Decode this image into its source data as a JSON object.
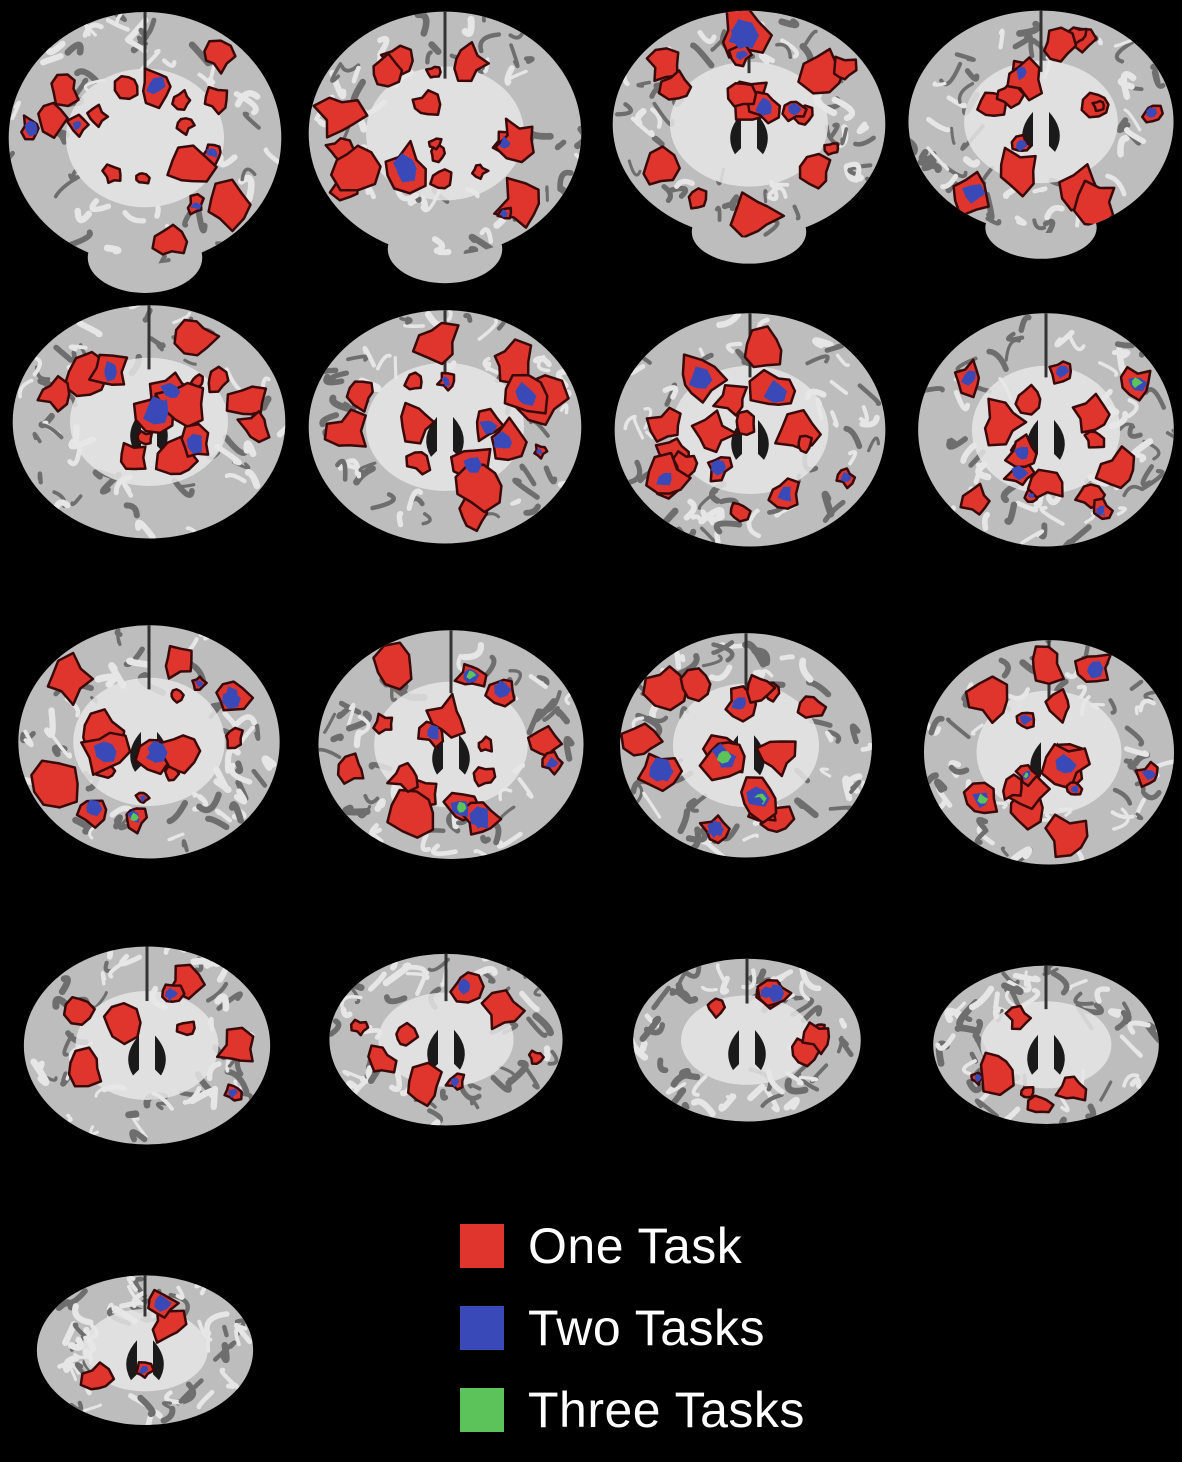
{
  "figure": {
    "description_type": "coronal-brain-slice-montage",
    "slices": [
      {
        "name": "slice-01",
        "row": 1,
        "col": 1,
        "red": 18,
        "blue": 5,
        "green": 0,
        "cerebellum": true
      },
      {
        "name": "slice-02",
        "row": 1,
        "col": 2,
        "red": 18,
        "blue": 5,
        "green": 0,
        "cerebellum": true
      },
      {
        "name": "slice-03",
        "row": 1,
        "col": 3,
        "red": 16,
        "blue": 6,
        "green": 0,
        "cerebellum": true
      },
      {
        "name": "slice-04",
        "row": 1,
        "col": 4,
        "red": 15,
        "blue": 6,
        "green": 0,
        "cerebellum": true
      },
      {
        "name": "slice-05",
        "row": 2,
        "col": 1,
        "red": 15,
        "blue": 5,
        "green": 0,
        "cerebellum": false
      },
      {
        "name": "slice-06",
        "row": 2,
        "col": 2,
        "red": 16,
        "blue": 6,
        "green": 0,
        "cerebellum": false
      },
      {
        "name": "slice-07",
        "row": 2,
        "col": 3,
        "red": 17,
        "blue": 6,
        "green": 0,
        "cerebellum": false
      },
      {
        "name": "slice-08",
        "row": 2,
        "col": 4,
        "red": 16,
        "blue": 8,
        "green": 2,
        "cerebellum": false
      },
      {
        "name": "slice-09",
        "row": 3,
        "col": 1,
        "red": 16,
        "blue": 9,
        "green": 3,
        "cerebellum": false
      },
      {
        "name": "slice-10",
        "row": 3,
        "col": 2,
        "red": 16,
        "blue": 10,
        "green": 3,
        "cerebellum": false
      },
      {
        "name": "slice-11",
        "row": 3,
        "col": 3,
        "red": 16,
        "blue": 9,
        "green": 4,
        "cerebellum": false
      },
      {
        "name": "slice-12",
        "row": 3,
        "col": 4,
        "red": 15,
        "blue": 7,
        "green": 2,
        "cerebellum": false
      },
      {
        "name": "slice-13",
        "row": 4,
        "col": 1,
        "red": 8,
        "blue": 3,
        "green": 1,
        "cerebellum": false
      },
      {
        "name": "slice-14",
        "row": 4,
        "col": 2,
        "red": 8,
        "blue": 2,
        "green": 0,
        "cerebellum": false
      },
      {
        "name": "slice-15",
        "row": 4,
        "col": 3,
        "red": 6,
        "blue": 3,
        "green": 0,
        "cerebellum": false
      },
      {
        "name": "slice-16",
        "row": 4,
        "col": 4,
        "red": 6,
        "blue": 2,
        "green": 1,
        "cerebellum": false
      },
      {
        "name": "slice-17",
        "row": 5,
        "col": 1,
        "red": 4,
        "blue": 2,
        "green": 0,
        "cerebellum": false
      }
    ]
  },
  "legend": {
    "items": [
      {
        "name": "one-task",
        "label": "One Task",
        "color": "#e0352d"
      },
      {
        "name": "two-tasks",
        "label": "Two Tasks",
        "color": "#3a49b8"
      },
      {
        "name": "three-tasks",
        "label": "Three Tasks",
        "color": "#5cc35a"
      }
    ]
  },
  "colors": {
    "background": "#000000",
    "brain_gray": "#bdbdbd",
    "brain_light": "#e6e6e6",
    "brain_dark": "#6e6e6e",
    "outline_dark": "#3a0a0a"
  }
}
